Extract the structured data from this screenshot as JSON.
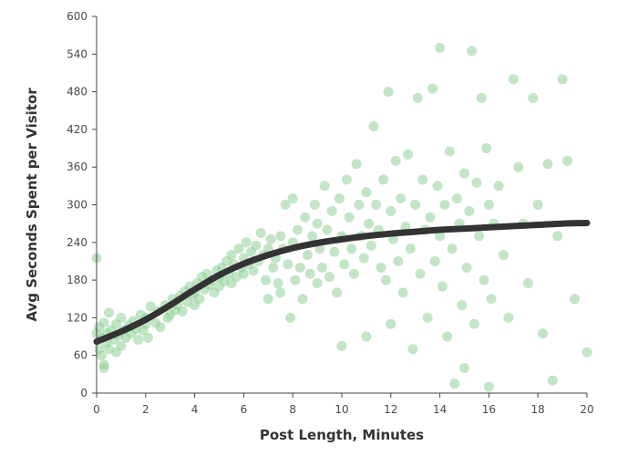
{
  "chart_data": {
    "type": "scatter",
    "title": "",
    "xlabel": "Post Length, Minutes",
    "ylabel": "Avg Seconds Spent per Visitor",
    "xlim": [
      0,
      20
    ],
    "ylim": [
      0,
      600
    ],
    "x_ticks": [
      0,
      2,
      4,
      6,
      8,
      10,
      12,
      14,
      16,
      18,
      20
    ],
    "y_ticks": [
      0,
      60,
      120,
      180,
      240,
      300,
      360,
      420,
      480,
      540,
      600
    ],
    "grid": false,
    "legend": "none",
    "colors": {
      "points": "#8fcf97",
      "trend": "#333333",
      "axis": "#444444"
    },
    "series": [
      {
        "kind": "points",
        "points": [
          [
            0.0,
            215
          ],
          [
            0.0,
            95
          ],
          [
            0.1,
            70
          ],
          [
            0.1,
            105
          ],
          [
            0.2,
            60
          ],
          [
            0.2,
            88
          ],
          [
            0.3,
            45
          ],
          [
            0.3,
            40
          ],
          [
            0.3,
            112
          ],
          [
            0.4,
            80
          ],
          [
            0.4,
            95
          ],
          [
            0.5,
            128
          ],
          [
            0.5,
            70
          ],
          [
            0.6,
            100
          ],
          [
            0.7,
            85
          ],
          [
            0.8,
            65
          ],
          [
            0.8,
            110
          ],
          [
            0.9,
            92
          ],
          [
            1.0,
            120
          ],
          [
            1.0,
            75
          ],
          [
            1.1,
            100
          ],
          [
            1.2,
            88
          ],
          [
            1.3,
            108
          ],
          [
            1.4,
            95
          ],
          [
            1.5,
            115
          ],
          [
            1.6,
            102
          ],
          [
            1.7,
            85
          ],
          [
            1.8,
            125
          ],
          [
            1.9,
            100
          ],
          [
            2.0,
            110
          ],
          [
            2.0,
            120
          ],
          [
            2.1,
            88
          ],
          [
            2.2,
            138
          ],
          [
            2.4,
            112
          ],
          [
            2.5,
            130
          ],
          [
            2.6,
            105
          ],
          [
            2.8,
            140
          ],
          [
            2.9,
            120
          ],
          [
            3.0,
            125
          ],
          [
            3.1,
            150
          ],
          [
            3.2,
            132
          ],
          [
            3.3,
            140
          ],
          [
            3.4,
            155
          ],
          [
            3.5,
            130
          ],
          [
            3.6,
            162
          ],
          [
            3.7,
            145
          ],
          [
            3.8,
            170
          ],
          [
            3.9,
            155
          ],
          [
            4.0,
            160
          ],
          [
            4.0,
            140
          ],
          [
            4.1,
            175
          ],
          [
            4.2,
            150
          ],
          [
            4.3,
            185
          ],
          [
            4.4,
            165
          ],
          [
            4.5,
            190
          ],
          [
            4.6,
            172
          ],
          [
            4.7,
            180
          ],
          [
            4.8,
            160
          ],
          [
            4.9,
            195
          ],
          [
            5.0,
            185
          ],
          [
            5.0,
            170
          ],
          [
            5.1,
            200
          ],
          [
            5.2,
            178
          ],
          [
            5.3,
            210
          ],
          [
            5.4,
            190
          ],
          [
            5.5,
            220
          ],
          [
            5.5,
            175
          ],
          [
            5.6,
            205
          ],
          [
            5.7,
            185
          ],
          [
            5.8,
            230
          ],
          [
            5.9,
            200
          ],
          [
            6.0,
            215
          ],
          [
            6.0,
            190
          ],
          [
            6.1,
            240
          ],
          [
            6.2,
            205
          ],
          [
            6.3,
            225
          ],
          [
            6.4,
            195
          ],
          [
            6.5,
            235
          ],
          [
            6.6,
            210
          ],
          [
            6.7,
            255
          ],
          [
            6.8,
            220
          ],
          [
            6.9,
            180
          ],
          [
            7.0,
            230
          ],
          [
            7.0,
            150
          ],
          [
            7.1,
            245
          ],
          [
            7.2,
            200
          ],
          [
            7.3,
            215
          ],
          [
            7.4,
            175
          ],
          [
            7.5,
            250
          ],
          [
            7.5,
            160
          ],
          [
            7.6,
            230
          ],
          [
            7.7,
            300
          ],
          [
            7.8,
            205
          ],
          [
            7.9,
            120
          ],
          [
            8.0,
            240
          ],
          [
            8.0,
            310
          ],
          [
            8.1,
            180
          ],
          [
            8.2,
            260
          ],
          [
            8.3,
            200
          ],
          [
            8.4,
            150
          ],
          [
            8.5,
            280
          ],
          [
            8.6,
            220
          ],
          [
            8.7,
            190
          ],
          [
            8.8,
            250
          ],
          [
            8.9,
            300
          ],
          [
            9.0,
            175
          ],
          [
            9.0,
            270
          ],
          [
            9.1,
            230
          ],
          [
            9.2,
            200
          ],
          [
            9.3,
            330
          ],
          [
            9.4,
            260
          ],
          [
            9.5,
            185
          ],
          [
            9.6,
            290
          ],
          [
            9.7,
            225
          ],
          [
            9.8,
            160
          ],
          [
            9.9,
            310
          ],
          [
            10.0,
            250
          ],
          [
            10.0,
            75
          ],
          [
            10.1,
            205
          ],
          [
            10.2,
            340
          ],
          [
            10.3,
            280
          ],
          [
            10.4,
            230
          ],
          [
            10.5,
            190
          ],
          [
            10.6,
            365
          ],
          [
            10.7,
            300
          ],
          [
            10.8,
            250
          ],
          [
            10.9,
            215
          ],
          [
            11.0,
            320
          ],
          [
            11.0,
            90
          ],
          [
            11.1,
            270
          ],
          [
            11.2,
            235
          ],
          [
            11.3,
            425
          ],
          [
            11.4,
            300
          ],
          [
            11.5,
            260
          ],
          [
            11.6,
            200
          ],
          [
            11.7,
            340
          ],
          [
            11.8,
            180
          ],
          [
            11.9,
            480
          ],
          [
            12.0,
            290
          ],
          [
            12.0,
            110
          ],
          [
            12.1,
            245
          ],
          [
            12.2,
            370
          ],
          [
            12.3,
            210
          ],
          [
            12.4,
            310
          ],
          [
            12.5,
            160
          ],
          [
            12.6,
            265
          ],
          [
            12.7,
            380
          ],
          [
            12.8,
            230
          ],
          [
            12.9,
            70
          ],
          [
            13.0,
            300
          ],
          [
            13.1,
            470
          ],
          [
            13.2,
            190
          ],
          [
            13.3,
            340
          ],
          [
            13.4,
            260
          ],
          [
            13.5,
            120
          ],
          [
            13.6,
            280
          ],
          [
            13.7,
            485
          ],
          [
            13.8,
            210
          ],
          [
            13.9,
            330
          ],
          [
            14.0,
            250
          ],
          [
            14.0,
            550
          ],
          [
            14.1,
            170
          ],
          [
            14.2,
            300
          ],
          [
            14.3,
            90
          ],
          [
            14.4,
            385
          ],
          [
            14.5,
            230
          ],
          [
            14.6,
            15
          ],
          [
            14.7,
            310
          ],
          [
            14.8,
            270
          ],
          [
            14.9,
            140
          ],
          [
            15.0,
            350
          ],
          [
            15.0,
            40
          ],
          [
            15.1,
            200
          ],
          [
            15.2,
            290
          ],
          [
            15.3,
            545
          ],
          [
            15.4,
            110
          ],
          [
            15.5,
            335
          ],
          [
            15.6,
            250
          ],
          [
            15.7,
            470
          ],
          [
            15.8,
            180
          ],
          [
            15.9,
            390
          ],
          [
            16.0,
            300
          ],
          [
            16.0,
            10
          ],
          [
            16.1,
            150
          ],
          [
            16.2,
            270
          ],
          [
            16.4,
            330
          ],
          [
            16.6,
            220
          ],
          [
            16.8,
            120
          ],
          [
            17.0,
            500
          ],
          [
            17.2,
            360
          ],
          [
            17.4,
            270
          ],
          [
            17.6,
            175
          ],
          [
            17.8,
            470
          ],
          [
            18.0,
            300
          ],
          [
            18.2,
            95
          ],
          [
            18.4,
            365
          ],
          [
            18.6,
            20
          ],
          [
            18.8,
            250
          ],
          [
            19.0,
            500
          ],
          [
            19.2,
            370
          ],
          [
            19.5,
            150
          ],
          [
            20.0,
            65
          ]
        ]
      },
      {
        "kind": "trend",
        "points": [
          [
            0,
            82
          ],
          [
            1,
            98
          ],
          [
            2,
            117
          ],
          [
            3,
            140
          ],
          [
            4,
            165
          ],
          [
            5,
            188
          ],
          [
            6,
            206
          ],
          [
            7,
            220
          ],
          [
            8,
            231
          ],
          [
            9,
            239
          ],
          [
            10,
            245
          ],
          [
            11,
            250
          ],
          [
            12,
            254
          ],
          [
            13,
            257
          ],
          [
            14,
            260
          ],
          [
            15,
            262
          ],
          [
            16,
            264
          ],
          [
            17,
            266
          ],
          [
            18,
            268
          ],
          [
            19,
            270
          ],
          [
            20,
            271
          ]
        ]
      }
    ]
  }
}
